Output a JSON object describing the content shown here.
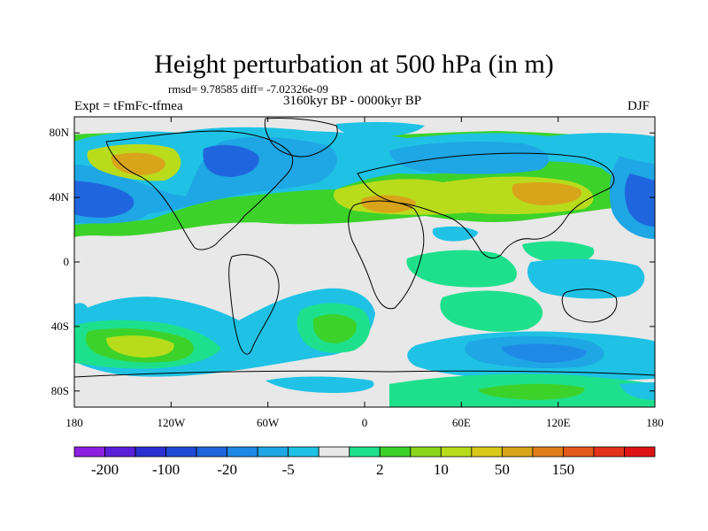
{
  "title": "Height perturbation at 500 hPa (in m)",
  "stats": "rmsd= 9.78585 diff= -7.02326e-09",
  "expt": "Expt = tFmFc-tfmea",
  "period": "3160kyr BP - 0000kyr BP",
  "season": "DJF",
  "map": {
    "lat_ticks": [
      {
        "label": "80N",
        "lat": 80
      },
      {
        "label": "40N",
        "lat": 40
      },
      {
        "label": "0",
        "lat": 0
      },
      {
        "label": "40S",
        "lat": -40
      },
      {
        "label": "80S",
        "lat": -80
      }
    ],
    "lon_ticks": [
      {
        "label": "180",
        "lon": -180
      },
      {
        "label": "120W",
        "lon": -120
      },
      {
        "label": "60W",
        "lon": -60
      },
      {
        "label": "0",
        "lon": 0
      },
      {
        "label": "60E",
        "lon": 60
      },
      {
        "label": "120E",
        "lon": 120
      },
      {
        "label": "180",
        "lon": 180
      }
    ],
    "lat_range": [
      -90,
      90
    ],
    "lon_range": [
      -180,
      180
    ],
    "background_color": "#e8e8e8"
  },
  "colorbar": {
    "colors": [
      "#8c1fe0",
      "#5a1fd8",
      "#2b2fd2",
      "#1f4ad6",
      "#1f66de",
      "#1f8ae6",
      "#1fa6e4",
      "#1fc2e4",
      "#e8e8e8",
      "#1ee08c",
      "#3cd22a",
      "#8ad61c",
      "#b8dc1c",
      "#d8c81a",
      "#d8a41a",
      "#e07e1a",
      "#e45a1a",
      "#e4321a",
      "#e01414"
    ],
    "labels": [
      "-200",
      "-100",
      "-20",
      "-5",
      "2",
      "10",
      "50",
      "150"
    ]
  }
}
